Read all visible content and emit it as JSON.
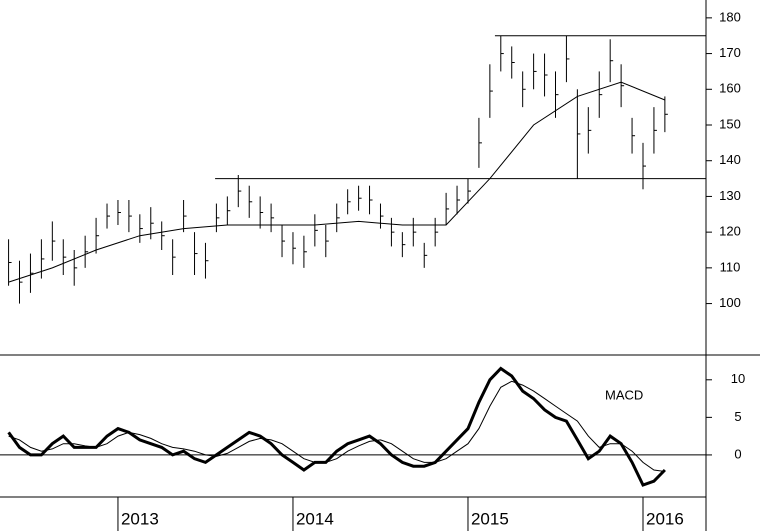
{
  "chart_data": [
    {
      "type": "ohlc",
      "x": [
        2012.375,
        2012.4375,
        2012.5,
        2012.5625,
        2012.625,
        2012.6875,
        2012.75,
        2012.8125,
        2012.875,
        2012.9375,
        2013,
        2013.0625,
        2013.125,
        2013.1875,
        2013.25,
        2013.3125,
        2013.375,
        2013.4375,
        2013.5,
        2013.5625,
        2013.625,
        2013.6875,
        2013.75,
        2013.8125,
        2013.875,
        2013.9375,
        2014,
        2014.0625,
        2014.125,
        2014.1875,
        2014.25,
        2014.3125,
        2014.375,
        2014.4375,
        2014.5,
        2014.5625,
        2014.625,
        2014.6875,
        2014.75,
        2014.8125,
        2014.875,
        2014.9375,
        2015,
        2015.0625,
        2015.125,
        2015.1875,
        2015.25,
        2015.3125,
        2015.375,
        2015.4375,
        2015.5,
        2015.5625,
        2015.625,
        2015.6875,
        2015.75,
        2015.8125,
        2015.875,
        2015.9375,
        2016,
        2016.0625,
        2016.125
      ],
      "high": [
        118,
        112,
        114,
        118,
        123,
        118,
        115,
        119,
        124,
        128,
        129,
        129,
        125,
        127,
        123,
        118,
        129,
        120,
        117,
        128,
        130,
        136,
        133,
        130,
        128,
        122,
        120,
        119,
        125,
        122,
        128,
        132,
        133,
        133,
        128,
        124,
        120,
        124,
        117,
        124,
        131,
        133,
        135,
        152,
        167,
        175,
        172,
        165,
        170,
        170,
        165,
        175,
        160,
        155,
        165,
        174,
        167,
        152,
        145,
        155,
        158
      ],
      "low": [
        105,
        100,
        103,
        107,
        112,
        108,
        105,
        110,
        114,
        121,
        122,
        120,
        117,
        118,
        115,
        108,
        120,
        108,
        107,
        120,
        122,
        127,
        124,
        121,
        120,
        113,
        111,
        110,
        116,
        113,
        120,
        125,
        126,
        125,
        121,
        116,
        113,
        116,
        110,
        116,
        122,
        125,
        128,
        138,
        152,
        165,
        163,
        155,
        160,
        158,
        152,
        162,
        135,
        142,
        152,
        162,
        155,
        142,
        132,
        142,
        148
      ],
      "ma": {
        "x": [
          2012.375,
          2012.625,
          2012.875,
          2013.125,
          2013.375,
          2013.625,
          2013.875,
          2014.125,
          2014.375,
          2014.625,
          2014.875,
          2015.125,
          2015.375,
          2015.625,
          2015.875,
          2016.125
        ],
        "values": [
          106,
          110,
          115,
          119,
          121,
          122,
          122,
          122,
          123,
          122,
          122,
          135,
          150,
          158,
          162,
          157
        ]
      },
      "hlines": [
        {
          "value": 175,
          "from": 2015.154
        },
        {
          "value": 135,
          "from": 2013.555
        }
      ],
      "xlim": [
        2012.326,
        2016.36
      ],
      "ylim": [
        85.6,
        185
      ],
      "yticks": [
        100,
        110,
        120,
        130,
        140,
        150,
        160,
        170,
        180
      ],
      "color": "#000000"
    },
    {
      "type": "line",
      "annotation": "MACD",
      "x": [
        2012.375,
        2012.4375,
        2012.5,
        2012.5625,
        2012.625,
        2012.6875,
        2012.75,
        2012.8125,
        2012.875,
        2012.9375,
        2013,
        2013.0625,
        2013.125,
        2013.1875,
        2013.25,
        2013.3125,
        2013.375,
        2013.4375,
        2013.5,
        2013.5625,
        2013.625,
        2013.6875,
        2013.75,
        2013.8125,
        2013.875,
        2013.9375,
        2014,
        2014.0625,
        2014.125,
        2014.1875,
        2014.25,
        2014.3125,
        2014.375,
        2014.4375,
        2014.5,
        2014.5625,
        2014.625,
        2014.6875,
        2014.75,
        2014.8125,
        2014.875,
        2014.9375,
        2015,
        2015.0625,
        2015.125,
        2015.1875,
        2015.25,
        2015.3125,
        2015.375,
        2015.4375,
        2015.5,
        2015.5625,
        2015.625,
        2015.6875,
        2015.75,
        2015.8125,
        2015.875,
        2015.9375,
        2016,
        2016.0625,
        2016.125
      ],
      "macd": [
        3,
        1,
        0,
        0,
        1.5,
        2.5,
        1,
        1,
        1,
        2.5,
        3.5,
        3,
        2,
        1.5,
        1,
        0,
        0.5,
        -0.5,
        -1,
        0,
        1,
        2,
        3,
        2.5,
        1.5,
        0,
        -1,
        -2,
        -1,
        -1,
        0.5,
        1.5,
        2,
        2.5,
        1.5,
        0,
        -1,
        -1.5,
        -1.5,
        -1,
        0.5,
        2,
        3.5,
        7,
        10,
        11.5,
        10.5,
        8.5,
        7.5,
        6,
        5,
        4.5,
        2,
        -0.5,
        0.5,
        2.5,
        1.5,
        -1,
        -4,
        -3.5,
        -2
      ],
      "signal": [
        2.5,
        2,
        1,
        0.5,
        0.8,
        1.5,
        1.5,
        1.2,
        1,
        1.5,
        2.5,
        3,
        2.7,
        2.2,
        1.5,
        1,
        0.8,
        0.5,
        0,
        -0.2,
        0.2,
        1,
        1.8,
        2.2,
        2,
        1.5,
        0.5,
        -0.5,
        -1,
        -1,
        -0.5,
        0.5,
        1.2,
        1.8,
        2,
        1.5,
        0.5,
        -0.5,
        -1,
        -1,
        -0.5,
        0.5,
        1.5,
        3.5,
        6.5,
        9,
        9.8,
        9.3,
        8.5,
        7.5,
        6.5,
        5.5,
        4.5,
        2.5,
        1,
        1.5,
        1.5,
        0.5,
        -1,
        -2,
        -2.2
      ],
      "xlim": [
        2012.326,
        2016.36
      ],
      "xticks": [
        2013,
        2014,
        2015,
        2016
      ],
      "ylim": [
        -5.6,
        13.3
      ],
      "yticks": [
        0,
        5,
        10
      ],
      "color": "#000000"
    }
  ]
}
